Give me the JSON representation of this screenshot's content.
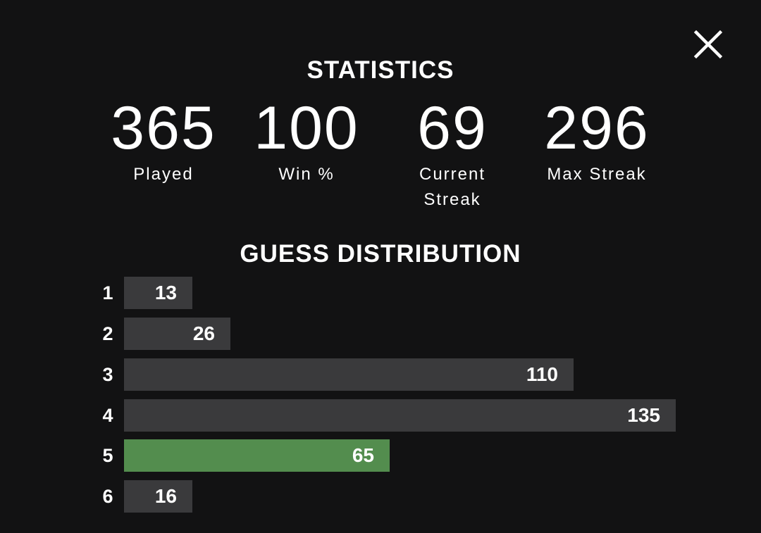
{
  "close_icon": "close-icon",
  "statistics": {
    "title": "STATISTICS",
    "played": {
      "value": "365",
      "label": "Played"
    },
    "win_pct": {
      "value": "100",
      "label": "Win %"
    },
    "current_streak": {
      "value": "69",
      "label_line1": "Current",
      "label_line2": "Streak"
    },
    "max_streak": {
      "value": "296",
      "label": "Max Streak"
    }
  },
  "guess_distribution": {
    "title": "GUESS DISTRIBUTION",
    "rows": [
      {
        "guess": "1",
        "count": 13
      },
      {
        "guess": "2",
        "count": 26
      },
      {
        "guess": "3",
        "count": 110
      },
      {
        "guess": "4",
        "count": 135
      },
      {
        "guess": "5",
        "count": 65
      },
      {
        "guess": "6",
        "count": 16
      }
    ],
    "highlight_guess": "5",
    "colors": {
      "bar": "#3a3a3c",
      "highlight": "#538d4e"
    }
  }
}
